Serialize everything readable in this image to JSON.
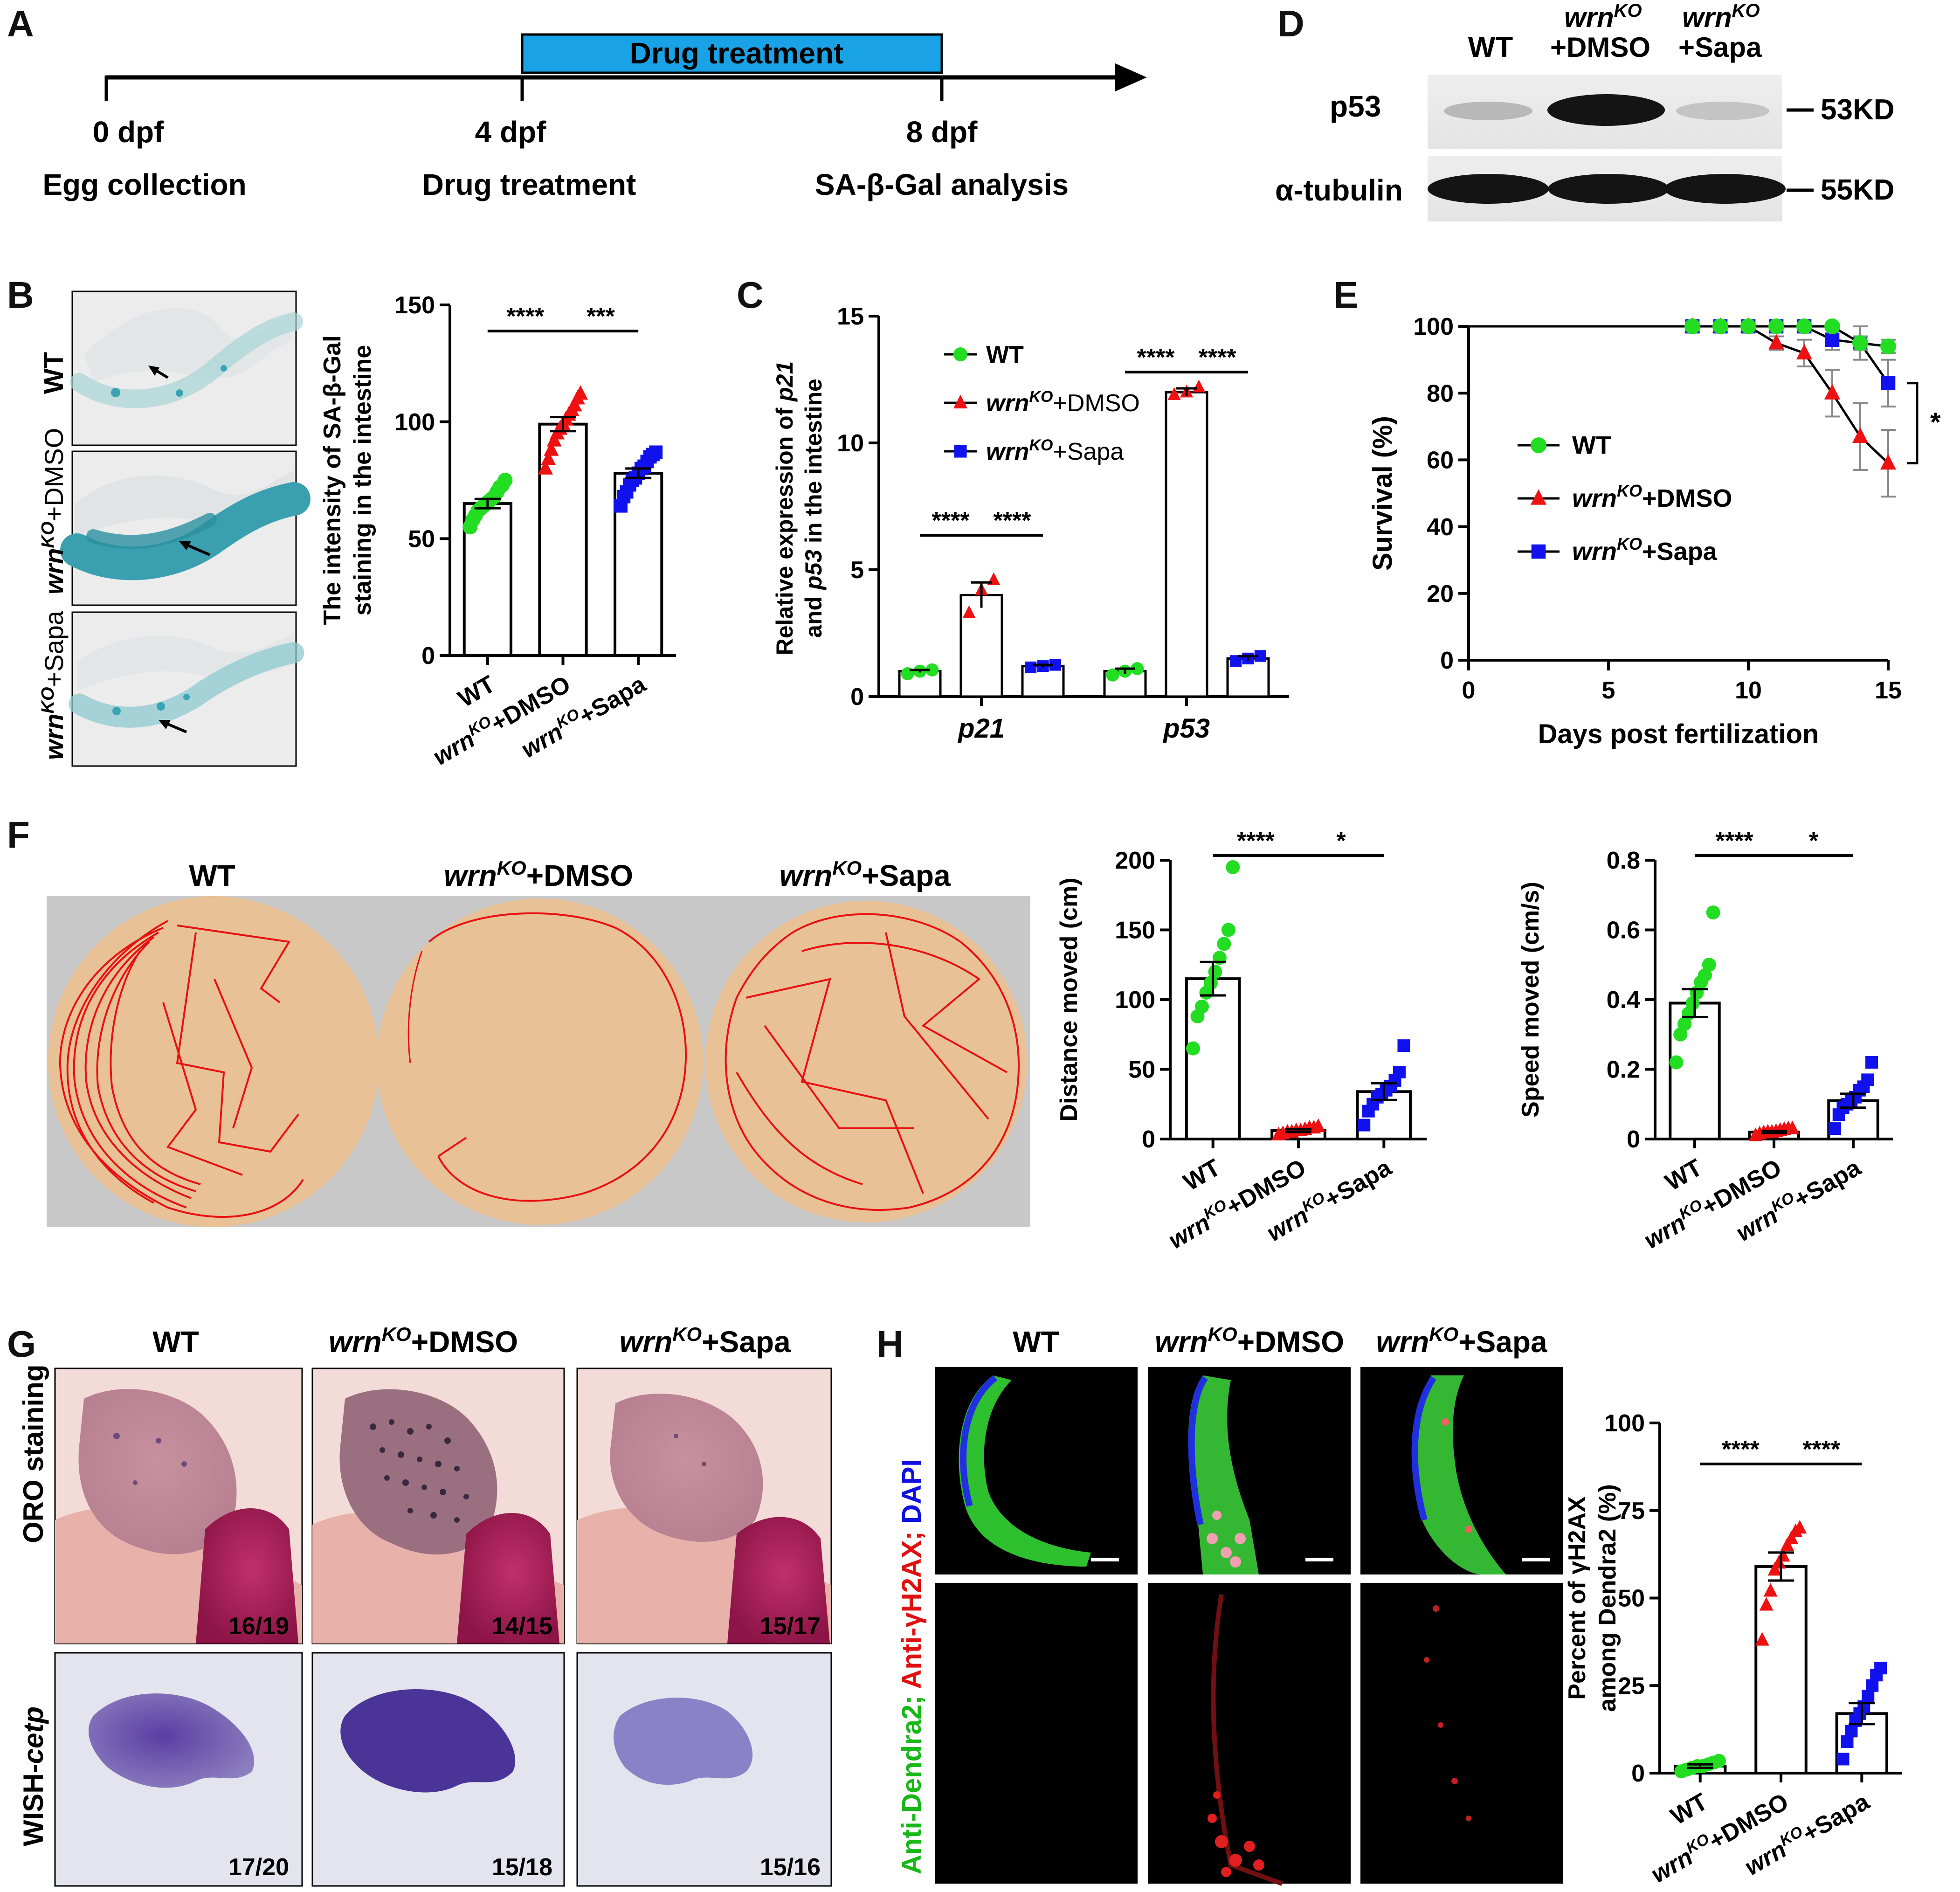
{
  "panels": {
    "A": {
      "letter": "A",
      "bar_label": "Drug treatment",
      "ticks": [
        {
          "day": "0 dpf",
          "desc": "Egg collection"
        },
        {
          "day": "4 dpf",
          "desc": "Drug treatment"
        },
        {
          "day": "8 dpf",
          "desc": "SA-β-Gal analysis"
        }
      ]
    },
    "B": {
      "letter": "B",
      "img_labels": [
        "WT",
        "wrn",
        "KO",
        "+DMSO",
        "wrn",
        "KO",
        "+Sapa"
      ]
    },
    "C": {
      "letter": "C"
    },
    "D": {
      "letter": "D",
      "columns": [
        "WT",
        "wrn",
        "KO",
        "+DMSO",
        "wrn",
        "KO",
        "+Sapa"
      ],
      "rows": [
        "p53",
        "α-tubulin"
      ],
      "sizes": [
        "53KD",
        "55KD"
      ]
    },
    "E": {
      "letter": "E"
    },
    "F": {
      "letter": "F",
      "titles": [
        "WT",
        "wrn",
        "KO",
        "+DMSO",
        "wrn",
        "KO",
        "+Sapa"
      ]
    },
    "G": {
      "letter": "G",
      "titles": [
        "WT",
        "wrn",
        "KO",
        "+DMSO",
        "wrn",
        "KO",
        "+Sapa"
      ],
      "row_labels": [
        "ORO staining",
        "WISH-",
        "cetp"
      ],
      "counts": [
        "16/19",
        "14/15",
        "15/17",
        "17/20",
        "15/18",
        "15/16"
      ]
    },
    "H": {
      "letter": "H",
      "titles": [
        "WT",
        "wrn",
        "KO",
        "+DMSO",
        "wrn",
        "KO",
        "+Sapa"
      ],
      "stain_label": [
        "Anti-Dendra2;",
        " Anti-γH2AX;",
        " DAPI"
      ]
    }
  },
  "group_tick_parts": [
    "WT",
    "wrn",
    "KO",
    "+DMSO",
    "wrn",
    "KO",
    "+Sapa"
  ],
  "colors": {
    "wt": "#22dd22",
    "dmso": "#ee1111",
    "sapa": "#1111ee",
    "blue_bar": "#19a3e6",
    "arena": "#e8c196",
    "arena_bg": "#c8c8c8",
    "track": "#e81010"
  },
  "chart_data": [
    {
      "panel": "B",
      "type": "bar",
      "categories": [
        "WT",
        "wrnKO+DMSO",
        "wrnKO+Sapa"
      ],
      "values": [
        65,
        99,
        78
      ],
      "errors": [
        2,
        3,
        2
      ],
      "points": [
        [
          55,
          58,
          60,
          62,
          63,
          64,
          65,
          66,
          67,
          68,
          70,
          72,
          73,
          75
        ],
        [
          80,
          84,
          88,
          92,
          95,
          97,
          99,
          101,
          103,
          105,
          107,
          110,
          112
        ],
        [
          64,
          68,
          70,
          73,
          75,
          76,
          78,
          80,
          81,
          83,
          85,
          86,
          87
        ]
      ],
      "ylabel": [
        "The intensity of SA-β-Gal",
        "staining in the intestine"
      ],
      "ylim": [
        0,
        150
      ],
      "yticks": [
        "0",
        "50",
        "100",
        "150"
      ],
      "significance": [
        "****",
        "***"
      ]
    },
    {
      "panel": "C",
      "type": "bar",
      "categories": [
        "p21",
        "p53"
      ],
      "series": [
        {
          "name": "WT",
          "values": [
            1.0,
            1.0
          ],
          "errors": [
            0.05,
            0.1
          ],
          "points": [
            [
              0.9,
              1.0,
              1.05
            ],
            [
              0.85,
              1.0,
              1.1
            ]
          ]
        },
        {
          "name": "wrnKO+DMSO",
          "values": [
            4.0,
            12.0
          ],
          "errors": [
            0.5,
            0.15
          ],
          "points": [
            [
              3.3,
              4.2,
              4.6
            ],
            [
              11.9,
              12.0,
              12.2
            ]
          ]
        },
        {
          "name": "wrnKO+Sapa",
          "values": [
            1.2,
            1.5
          ],
          "errors": [
            0.05,
            0.1
          ],
          "points": [
            [
              1.15,
              1.2,
              1.25
            ],
            [
              1.4,
              1.5,
              1.6
            ]
          ]
        }
      ],
      "ylabel": [
        "Relative expression of ",
        "p21",
        " and ",
        "p53",
        " in the intestine"
      ],
      "ylim": [
        0,
        15
      ],
      "yticks": [
        "0",
        "5",
        "10",
        "15"
      ],
      "significance": [
        "****",
        "****",
        "****",
        "****"
      ]
    },
    {
      "panel": "E",
      "type": "line",
      "x": [
        8,
        9,
        10,
        11,
        12,
        13,
        14,
        15
      ],
      "series": [
        {
          "name": "WT",
          "values": [
            100,
            100,
            100,
            100,
            100,
            100,
            95,
            94
          ],
          "errors": [
            0,
            0,
            0,
            0,
            0,
            0,
            2,
            2
          ]
        },
        {
          "name": "wrnKO+DMSO",
          "values": [
            100,
            100,
            100,
            95,
            92,
            80,
            67,
            59
          ],
          "errors": [
            0,
            0,
            0,
            2,
            4,
            7,
            10,
            10
          ]
        },
        {
          "name": "wrnKO+Sapa",
          "values": [
            100,
            100,
            100,
            100,
            100,
            96,
            95,
            83
          ],
          "errors": [
            0,
            0,
            0,
            0,
            0,
            3,
            5,
            7
          ]
        }
      ],
      "xlabel": "Days post fertilization",
      "ylabel": "Survival (%)",
      "xlim": [
        0,
        15
      ],
      "xticks": [
        "0",
        "5",
        "10",
        "15"
      ],
      "ylim": [
        0,
        100
      ],
      "yticks": [
        "0",
        "20",
        "40",
        "60",
        "80",
        "100"
      ],
      "significance": [
        "*"
      ]
    },
    {
      "panel": "F-distance",
      "type": "bar",
      "categories": [
        "WT",
        "wrnKO+DMSO",
        "wrnKO+Sapa"
      ],
      "values": [
        115,
        6,
        34
      ],
      "errors": [
        12,
        1,
        6
      ],
      "points": [
        [
          65,
          88,
          95,
          105,
          112,
          120,
          130,
          140,
          150,
          195
        ],
        [
          3,
          4,
          5,
          5,
          6,
          6,
          7,
          8,
          8,
          9
        ],
        [
          10,
          20,
          25,
          30,
          32,
          35,
          38,
          42,
          48,
          67
        ]
      ],
      "ylabel": "Distance moved (cm)",
      "ylim": [
        0,
        200
      ],
      "yticks": [
        "0",
        "50",
        "100",
        "150",
        "200"
      ],
      "significance": [
        "****",
        "*"
      ]
    },
    {
      "panel": "F-speed",
      "type": "bar",
      "categories": [
        "WT",
        "wrnKO+DMSO",
        "wrnKO+Sapa"
      ],
      "values": [
        0.39,
        0.02,
        0.11
      ],
      "errors": [
        0.04,
        0.003,
        0.02
      ],
      "points": [
        [
          0.22,
          0.3,
          0.33,
          0.36,
          0.39,
          0.42,
          0.45,
          0.47,
          0.5,
          0.65
        ],
        [
          0.01,
          0.015,
          0.018,
          0.02,
          0.02,
          0.022,
          0.025,
          0.028,
          0.03,
          0.03
        ],
        [
          0.03,
          0.07,
          0.09,
          0.1,
          0.11,
          0.12,
          0.14,
          0.15,
          0.17,
          0.22
        ]
      ],
      "ylabel": "Speed moved (cm/s)",
      "ylim": [
        0,
        0.8
      ],
      "yticks": [
        "0",
        "0.2",
        "0.4",
        "0.6",
        "0.8"
      ],
      "significance": [
        "****",
        "*"
      ]
    },
    {
      "panel": "H",
      "type": "bar",
      "categories": [
        "WT",
        "wrnKO+DMSO",
        "wrnKO+Sapa"
      ],
      "values": [
        2,
        59,
        17
      ],
      "errors": [
        0.5,
        4,
        3
      ],
      "points": [
        [
          0.5,
          1,
          1.5,
          2,
          2,
          2.5,
          3,
          3.5
        ],
        [
          38,
          48,
          52,
          58,
          60,
          62,
          65,
          67,
          69,
          70
        ],
        [
          4,
          9,
          12,
          15,
          17,
          19,
          22,
          25,
          28,
          30
        ]
      ],
      "ylabel": [
        "Percent of γH2AX",
        "among Dendra2 (%)"
      ],
      "ylim": [
        0,
        100
      ],
      "yticks": [
        "0",
        "25",
        "50",
        "75",
        "100"
      ],
      "significance": [
        "****",
        "****"
      ]
    }
  ]
}
